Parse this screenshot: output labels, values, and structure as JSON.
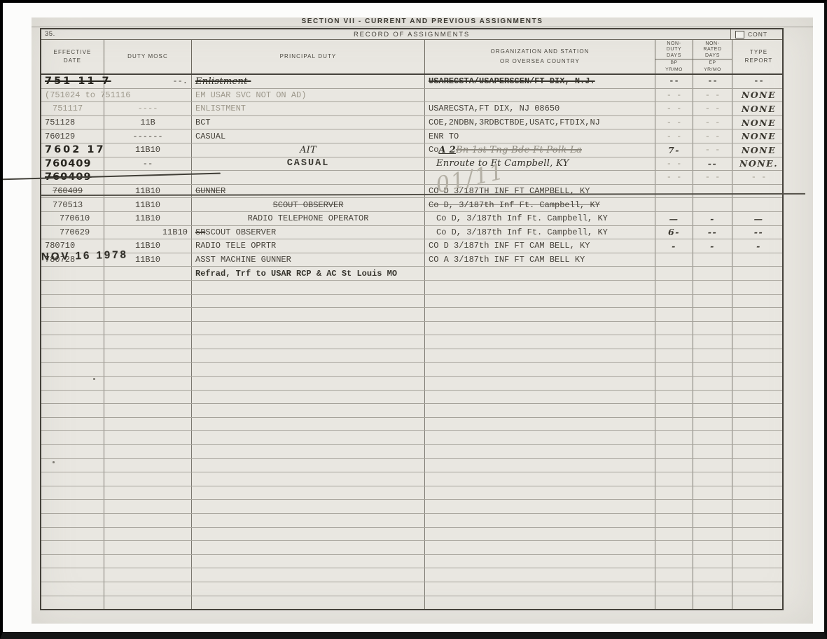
{
  "form": {
    "section_title": "SECTION VII - CURRENT AND PREVIOUS ASSIGNMENTS",
    "item_number": "35.",
    "table_title": "RECORD OF ASSIGNMENTS",
    "cont_label": "CONT",
    "headers": {
      "effective_date": "EFFECTIVE DATE",
      "duty_mosc": "DUTY MOSC",
      "principal_duty": "PRINCIPAL DUTY",
      "org_line1": "ORGANIZATION AND STATION",
      "org_line2": "OR OVERSEA COUNTRY",
      "non_duty_days": "NON-DUTY DAYS",
      "non_duty_sub1": "BP",
      "non_duty_sub2": "YR/MO",
      "non_rated_days": "NON-RATED DAYS",
      "non_rated_sub1": "EP",
      "non_rated_sub2": "YR/MO",
      "type_report": "TYPE REPORT"
    }
  },
  "table": {
    "empty_row_count": 24,
    "rows": [
      {
        "cells": [
          {
            "t": "751 11 7",
            "c": "handnum strike sp2"
          },
          {
            "t": "--.",
            "c": "alignr"
          },
          {
            "t": "Enlistment-",
            "c": "handcur strike"
          },
          {
            "t": "USARECSTA/USAPERSCEN/FT DIX, N.J.",
            "c": "strike dark"
          },
          {
            "t": "--",
            "c": "dark"
          },
          {
            "t": "--",
            "c": "dark"
          },
          {
            "t": "--",
            "c": "dark"
          }
        ]
      },
      {
        "cells": [
          {
            "t": "(751024 to 751116",
            "c": "faint"
          },
          {
            "t": "",
            "c": ""
          },
          {
            "t": "EM USAR SVC NOT ON AD)",
            "c": "faint"
          },
          {
            "t": "",
            "c": ""
          },
          {
            "t": "- -",
            "c": "faint"
          },
          {
            "t": "- -",
            "c": "faint"
          },
          {
            "t": "NONE",
            "c": "hand"
          }
        ]
      },
      {
        "cells": [
          {
            "t": "751117",
            "c": "faint ind1"
          },
          {
            "t": "----",
            "c": "faint ctr"
          },
          {
            "t": "ENLISTMENT",
            "c": "faint"
          },
          {
            "t": "USARECSTA,FT DIX, NJ 08650",
            "c": ""
          },
          {
            "t": "- -",
            "c": "faint"
          },
          {
            "t": "- -",
            "c": "faint"
          },
          {
            "t": "NONE",
            "c": "hand"
          }
        ]
      },
      {
        "cells": [
          {
            "t": "751128",
            "c": ""
          },
          {
            "t": "11B",
            "c": "ctr"
          },
          {
            "t": "BCT",
            "c": ""
          },
          {
            "t": "COE,2NDBN,3RDBCTBDE,USATC,FTDIX,NJ",
            "c": ""
          },
          {
            "t": "- -",
            "c": "faint"
          },
          {
            "t": "- -",
            "c": "faint"
          },
          {
            "t": "NONE",
            "c": "hand"
          }
        ]
      },
      {
        "cells": [
          {
            "t": "760129",
            "c": ""
          },
          {
            "t": "------",
            "c": "ctr"
          },
          {
            "t": "CASUAL",
            "c": ""
          },
          {
            "t": "ENR TO",
            "c": ""
          },
          {
            "t": "- -",
            "c": "faint"
          },
          {
            "t": "- -",
            "c": "faint"
          },
          {
            "t": "NONE",
            "c": "hand"
          }
        ]
      },
      {
        "cells": [
          {
            "t": "7602 17",
            "c": "handnum sp2"
          },
          {
            "t": "11B10",
            "c": "ctr"
          },
          {
            "t": "AIT",
            "c": "handcur ctr"
          },
          {
            "seg": [
              {
                "t": "Co ",
                "c": ""
              },
              {
                "t": "A 2 ",
                "c": "handcur und dark"
              },
              {
                "t": "Bn 1st Tng Bde Ft Polk La",
                "c": "handcur faded strike"
              }
            ],
            "c": ""
          },
          {
            "t": "7-",
            "c": "hand"
          },
          {
            "t": "- -",
            "c": "faint"
          },
          {
            "t": "NONE",
            "c": "hand"
          }
        ]
      },
      {
        "cells": [
          {
            "t": "760409",
            "c": "handnum"
          },
          {
            "t": "--",
            "c": "ctr"
          },
          {
            "t": "CASUAL",
            "c": "stampb ctr"
          },
          {
            "t": "Enroute to Ft Campbell, KY",
            "c": "handcur ind1"
          },
          {
            "t": "- -",
            "c": "faint"
          },
          {
            "t": "--",
            "c": "hand"
          },
          {
            "t": "NONE.",
            "c": "hand"
          }
        ]
      },
      {
        "cells": [
          {
            "t": "760409",
            "c": "handnum strike"
          },
          {
            "t": "",
            "c": ""
          },
          {
            "t": "",
            "c": ""
          },
          {
            "t": "",
            "c": ""
          },
          {
            "t": "- -",
            "c": "faint"
          },
          {
            "t": "- -",
            "c": "faint"
          },
          {
            "t": "- -",
            "c": "faint"
          }
        ]
      },
      {
        "cells": [
          {
            "t": "760409",
            "c": "ruleline ind1"
          },
          {
            "t": "11B10",
            "c": "ctr"
          },
          {
            "t": "GUNNER",
            "c": "ruleline"
          },
          {
            "t": "CO D 3/187TH INF FT CAMPBELL, KY",
            "c": ""
          },
          {
            "t": "",
            "c": ""
          },
          {
            "t": "",
            "c": ""
          },
          {
            "t": "",
            "c": ""
          }
        ]
      },
      {
        "cells": [
          {
            "t": "770513",
            "c": "ind1"
          },
          {
            "t": "11B10",
            "c": "ctr"
          },
          {
            "t": "SCOUT OBSERVER",
            "c": "ruleline ctr"
          },
          {
            "t": "Co D, 3/187th Inf Ft. Campbell, KY",
            "c": "ruleline"
          },
          {
            "t": "",
            "c": ""
          },
          {
            "t": "",
            "c": ""
          },
          {
            "t": "",
            "c": ""
          }
        ]
      },
      {
        "cells": [
          {
            "t": "770610",
            "c": "ind2"
          },
          {
            "t": "11B10",
            "c": "ctr"
          },
          {
            "t": "RADIO TELEPHONE OPERATOR",
            "c": "ctr"
          },
          {
            "t": "Co D, 3/187th Inf Ft. Campbell, KY",
            "c": "ind1"
          },
          {
            "t": "—",
            "c": "hand"
          },
          {
            "t": "-",
            "c": "hand"
          },
          {
            "t": "—",
            "c": "hand"
          }
        ]
      },
      {
        "cells": [
          {
            "t": "770629",
            "c": "ind2"
          },
          {
            "t": "11B10",
            "c": "alignr"
          },
          {
            "seg": [
              {
                "t": "SR",
                "c": "strike"
              },
              {
                "t": " SCOUT OBSERVER",
                "c": ""
              }
            ],
            "c": ""
          },
          {
            "t": "Co D, 3/187th Inf Ft. Campbell, KY",
            "c": "ind1"
          },
          {
            "t": "6-",
            "c": "hand"
          },
          {
            "t": "--",
            "c": "hand"
          },
          {
            "t": "--",
            "c": "hand"
          }
        ]
      },
      {
        "cells": [
          {
            "t": "780710",
            "c": ""
          },
          {
            "t": "11B10",
            "c": "ctr"
          },
          {
            "t": "RADIO TELE OPRTR",
            "c": ""
          },
          {
            "t": "CO D 3/187th INF FT CAM BELL, KY",
            "c": ""
          },
          {
            "t": "-",
            "c": "hand"
          },
          {
            "t": "-",
            "c": "hand"
          },
          {
            "t": "-",
            "c": "hand"
          }
        ]
      },
      {
        "cells": [
          {
            "t": "780728",
            "c": ""
          },
          {
            "t": "11B10",
            "c": "ctr"
          },
          {
            "t": "ASST MACHINE GUNNER",
            "c": ""
          },
          {
            "t": "CO A 3/187th INF FT CAM BELL KY",
            "c": ""
          },
          {
            "t": "",
            "c": ""
          },
          {
            "t": "",
            "c": ""
          },
          {
            "t": "",
            "c": ""
          }
        ]
      },
      {
        "cells": [
          {
            "t": "",
            "c": ""
          },
          {
            "t": "",
            "c": ""
          },
          {
            "t": "Refrad, Trf to USAR RCP & AC St Louis MO",
            "c": "dark"
          },
          {
            "t": "",
            "c": ""
          },
          {
            "t": "",
            "c": ""
          },
          {
            "t": "",
            "c": ""
          },
          {
            "t": "",
            "c": ""
          }
        ]
      }
    ]
  },
  "overlays": {
    "date_stamp": "NOV 16 1978",
    "pencil_note": "01/11"
  },
  "colors": {
    "paper": "#e9e7e1",
    "typed_ink": "#46423a",
    "faint_ink": "#9d988b",
    "hand_ink": "#27251f",
    "line": "#6d695f",
    "frame": "#000000"
  }
}
